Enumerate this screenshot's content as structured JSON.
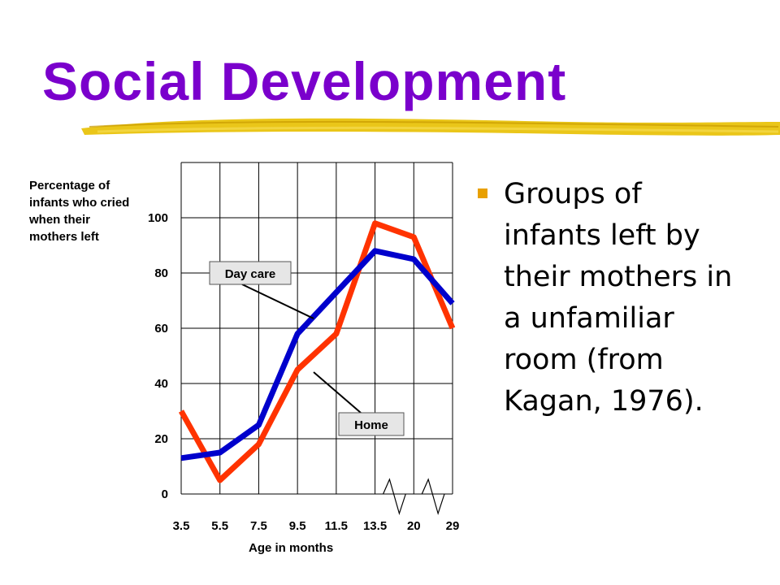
{
  "slide": {
    "title": "Social Development",
    "bullet": "Groups of infants left by their mothers in a unfamiliar room (from Kagan, 1976).",
    "accent_color": "#7a00cc",
    "brush_color": "#e8c000",
    "bullet_color": "#e8a000"
  },
  "chart_data": {
    "type": "line",
    "ylabel": "Percentage of infants who cried when their mothers left",
    "xlabel": "Age in months",
    "categories": [
      "3.5",
      "5.5",
      "7.5",
      "9.5",
      "11.5",
      "13.5",
      "20",
      "29"
    ],
    "y_ticks": [
      0,
      20,
      40,
      60,
      80,
      100
    ],
    "ylim": [
      0,
      120
    ],
    "grid": true,
    "axis_breaks_between": [
      [
        "13.5",
        "20"
      ],
      [
        "20",
        "29"
      ]
    ],
    "series": [
      {
        "name": "Day care",
        "color": "#0000cc",
        "values": [
          13,
          15,
          25,
          58,
          73,
          88,
          85,
          69
        ]
      },
      {
        "name": "Home",
        "color": "#ff3300",
        "values": [
          30,
          5,
          18,
          45,
          58,
          98,
          93,
          60
        ]
      }
    ]
  }
}
